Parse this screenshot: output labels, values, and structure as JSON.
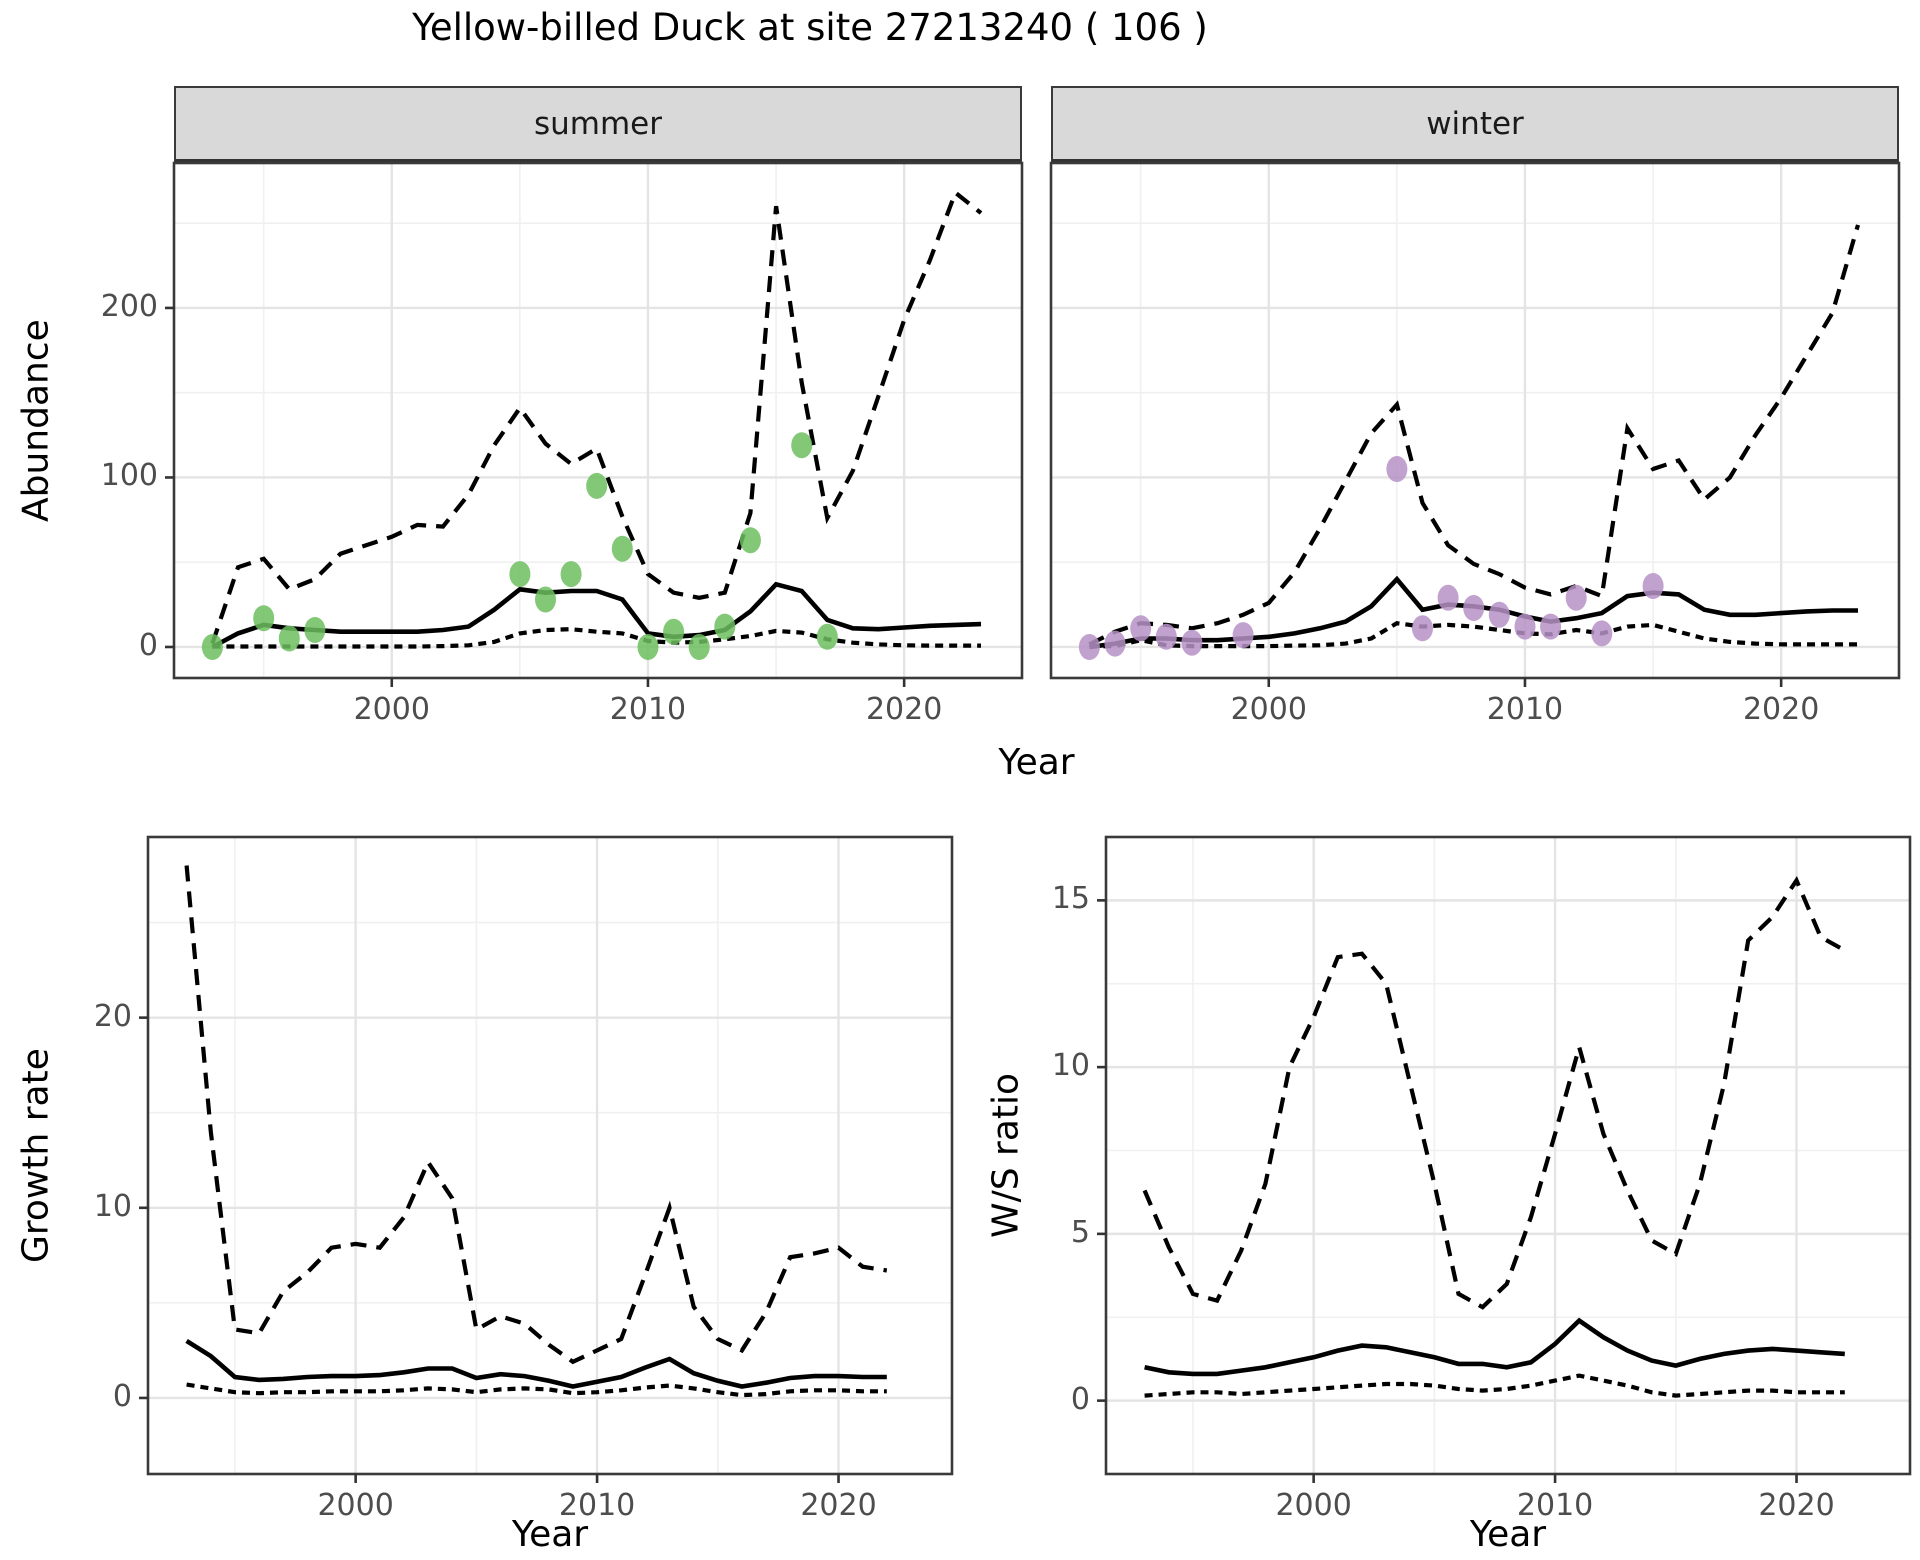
{
  "title": "Yellow-billed Duck at site 27213240 ( 106 )",
  "colors": {
    "summer_points": "#6CBE5E",
    "winter_points": "#B691C4",
    "line": "#000000",
    "grid_major": "#E4E4E4",
    "grid_minor": "#F0F0F0",
    "panel_border": "#3A3A3A",
    "strip_bg": "#D9D9D9",
    "tick_text": "#4D4D4D"
  },
  "chart_data": [
    {
      "id": "abundance-summer",
      "type": "line",
      "facet": "summer",
      "ylabel": "Abundance",
      "xlabel": "Year",
      "xlim": [
        1991.5,
        2024.6
      ],
      "ylim": [
        -18.3,
        285.5
      ],
      "x_major": [
        2000,
        2010,
        2020
      ],
      "x_minor": [
        1995,
        2005,
        2015
      ],
      "x_tick_labels": [
        "2000",
        "2010",
        "2020"
      ],
      "y_major": [
        0,
        100,
        200
      ],
      "y_minor": [
        50,
        150,
        250
      ],
      "y_tick_labels": [
        "0",
        "100",
        "200"
      ],
      "grid": true,
      "legend": "none",
      "series": [
        {
          "name": "upper-95ci",
          "style": "longdash",
          "years": [
            1993,
            1994,
            1995,
            1996,
            1997,
            1998,
            1999,
            2000,
            2001,
            2002,
            2003,
            2004,
            2005,
            2006,
            2007,
            2008,
            2009,
            2010,
            2011,
            2012,
            2013,
            2014,
            2015,
            2016,
            2017,
            2018,
            2019,
            2020,
            2021,
            2022,
            2023
          ],
          "values": [
            2,
            47,
            52,
            34,
            40,
            55,
            60,
            65,
            72,
            71,
            90,
            119,
            141,
            120,
            108,
            117,
            77,
            43,
            32,
            29,
            32,
            79,
            260,
            156,
            76,
            104,
            148,
            193,
            228,
            268,
            256
          ]
        },
        {
          "name": "lower-95ci",
          "style": "shortdash",
          "years": [
            1993,
            1994,
            1995,
            1996,
            1997,
            1998,
            1999,
            2000,
            2001,
            2002,
            2003,
            2004,
            2005,
            2006,
            2007,
            2008,
            2009,
            2010,
            2011,
            2012,
            2013,
            2014,
            2015,
            2016,
            2017,
            2018,
            2019,
            2020,
            2021,
            2022,
            2023
          ],
          "values": [
            0.3,
            0.3,
            0.3,
            0.3,
            0.3,
            0.3,
            0.3,
            0.3,
            0.3,
            0.5,
            1,
            3,
            8,
            10,
            10.5,
            9,
            8,
            3.5,
            2.5,
            3,
            4.5,
            6.5,
            9.5,
            8.5,
            4.5,
            2.5,
            1.5,
            1,
            0.8,
            0.8,
            0.8
          ]
        },
        {
          "name": "median",
          "style": "solid",
          "years": [
            1993,
            1994,
            1995,
            1996,
            1997,
            1998,
            1999,
            2000,
            2001,
            2002,
            2003,
            2004,
            2005,
            2006,
            2007,
            2008,
            2009,
            2010,
            2011,
            2012,
            2013,
            2014,
            2015,
            2016,
            2017,
            2018,
            2019,
            2020,
            2021,
            2022,
            2023
          ],
          "values": [
            0,
            8,
            13,
            11,
            10,
            9,
            9,
            9,
            9,
            10,
            12,
            22,
            34,
            32,
            33,
            33,
            28,
            8,
            6,
            7,
            10,
            21,
            37,
            33,
            16,
            11,
            10.5,
            11.5,
            12.5,
            13,
            13.5
          ]
        }
      ],
      "points": {
        "name": "observed-count",
        "color": "#6CBE5E",
        "years": [
          1993,
          1995,
          1996,
          1997,
          2005,
          2006,
          2007,
          2008,
          2009,
          2010,
          2011,
          2012,
          2013,
          2014,
          2016,
          2017
        ],
        "values": [
          0,
          17,
          5,
          10,
          43,
          28,
          43,
          95,
          58,
          0,
          9,
          0,
          12,
          63,
          119,
          6
        ]
      }
    },
    {
      "id": "abundance-winter",
      "type": "line",
      "facet": "winter",
      "ylabel": "Abundance",
      "xlabel": "Year",
      "xlim": [
        1991.5,
        2024.6
      ],
      "ylim": [
        -18.3,
        285.5
      ],
      "x_major": [
        2000,
        2010,
        2020
      ],
      "x_minor": [
        1995,
        2005,
        2015
      ],
      "x_tick_labels": [
        "2000",
        "2010",
        "2020"
      ],
      "y_major": [
        0,
        100,
        200
      ],
      "y_minor": [
        50,
        150,
        250
      ],
      "y_tick_labels": [],
      "grid": true,
      "legend": "none",
      "series": [
        {
          "name": "upper-95ci",
          "style": "longdash",
          "years": [
            1993,
            1994,
            1995,
            1996,
            1997,
            1998,
            1999,
            2000,
            2001,
            2002,
            2003,
            2004,
            2005,
            2006,
            2007,
            2008,
            2009,
            2010,
            2011,
            2012,
            2013,
            2014,
            2015,
            2016,
            2017,
            2018,
            2019,
            2020,
            2021,
            2022,
            2023
          ],
          "values": [
            1.5,
            9,
            14,
            13,
            11,
            14,
            19,
            26,
            44,
            70,
            98,
            126,
            143,
            85,
            60,
            49,
            43,
            35,
            31,
            36,
            30,
            129,
            105,
            110,
            87,
            100,
            125,
            147,
            172,
            197,
            249
          ]
        },
        {
          "name": "lower-95ci",
          "style": "shortdash",
          "years": [
            1993,
            1994,
            1995,
            1996,
            1997,
            1998,
            1999,
            2000,
            2001,
            2002,
            2003,
            2004,
            2005,
            2006,
            2007,
            2008,
            2009,
            2010,
            2011,
            2012,
            2013,
            2014,
            2015,
            2016,
            2017,
            2018,
            2019,
            2020,
            2021,
            2022,
            2023
          ],
          "values": [
            0.2,
            0.5,
            4,
            1,
            0.5,
            0.5,
            0.5,
            0.5,
            0.8,
            1,
            2,
            5,
            14,
            12,
            13,
            12,
            10,
            8,
            7.5,
            10,
            8,
            12,
            13,
            9,
            5,
            3,
            2,
            1.5,
            1.5,
            1.5,
            1.5
          ]
        },
        {
          "name": "median",
          "style": "solid",
          "years": [
            1993,
            1994,
            1995,
            1996,
            1997,
            1998,
            1999,
            2000,
            2001,
            2002,
            2003,
            2004,
            2005,
            2006,
            2007,
            2008,
            2009,
            2010,
            2011,
            2012,
            2013,
            2014,
            2015,
            2016,
            2017,
            2018,
            2019,
            2020,
            2021,
            2022,
            2023
          ],
          "values": [
            0,
            2,
            5,
            5,
            4,
            4,
            5,
            6,
            8,
            11,
            15,
            24,
            40,
            22,
            25,
            24,
            22,
            18,
            15,
            17,
            20,
            30,
            32,
            31,
            22,
            19,
            19,
            20,
            21,
            21.5,
            21.5
          ]
        }
      ],
      "points": {
        "name": "observed-count",
        "color": "#B691C4",
        "years": [
          1993,
          1994,
          1995,
          1996,
          1997,
          1999,
          2005,
          2006,
          2007,
          2008,
          2009,
          2010,
          2011,
          2012,
          2013,
          2015
        ],
        "values": [
          0,
          2,
          11,
          6,
          2.5,
          7,
          105,
          11,
          29,
          23,
          19,
          12,
          12,
          29,
          8,
          36
        ]
      }
    },
    {
      "id": "growth-rate",
      "type": "line",
      "facet": null,
      "ylabel": "Growth rate",
      "xlabel": "Year",
      "xlim": [
        1991.4,
        2024.7
      ],
      "ylim": [
        -4,
        29.5
      ],
      "x_major": [
        2000,
        2010,
        2020
      ],
      "x_minor": [
        1995,
        2005,
        2015
      ],
      "x_tick_labels": [
        "2000",
        "2010",
        "2020"
      ],
      "y_major": [
        0,
        10,
        20
      ],
      "y_minor": [
        5,
        15,
        25
      ],
      "y_tick_labels": [
        "0",
        "10",
        "20"
      ],
      "grid": true,
      "legend": "none",
      "series": [
        {
          "name": "upper-95ci",
          "style": "longdash",
          "years": [
            1993,
            1994,
            1995,
            1996,
            1997,
            1998,
            1999,
            2000,
            2001,
            2002,
            2003,
            2004,
            2005,
            2006,
            2007,
            2008,
            2009,
            2010,
            2011,
            2012,
            2013,
            2014,
            2015,
            2016,
            2017,
            2018,
            2019,
            2020,
            2021,
            2022
          ],
          "values": [
            28,
            14,
            3.6,
            3.4,
            5.6,
            6.6,
            7.9,
            8.1,
            7.9,
            9.5,
            12.4,
            10.5,
            3.6,
            4.3,
            3.9,
            2.8,
            1.9,
            2.5,
            3.1,
            6.5,
            10,
            4.8,
            3.1,
            2.5,
            4.5,
            7.4,
            7.6,
            7.9,
            6.9,
            6.7
          ]
        },
        {
          "name": "lower-95ci",
          "style": "shortdash",
          "years": [
            1993,
            1994,
            1995,
            1996,
            1997,
            1998,
            1999,
            2000,
            2001,
            2002,
            2003,
            2004,
            2005,
            2006,
            2007,
            2008,
            2009,
            2010,
            2011,
            2012,
            2013,
            2014,
            2015,
            2016,
            2017,
            2018,
            2019,
            2020,
            2021,
            2022
          ],
          "values": [
            0.7,
            0.5,
            0.3,
            0.25,
            0.3,
            0.3,
            0.35,
            0.35,
            0.35,
            0.4,
            0.5,
            0.45,
            0.3,
            0.45,
            0.5,
            0.45,
            0.25,
            0.3,
            0.4,
            0.55,
            0.65,
            0.5,
            0.3,
            0.15,
            0.2,
            0.35,
            0.4,
            0.4,
            0.35,
            0.35
          ]
        },
        {
          "name": "median",
          "style": "solid",
          "years": [
            1993,
            1994,
            1995,
            1996,
            1997,
            1998,
            1999,
            2000,
            2001,
            2002,
            2003,
            2004,
            2005,
            2006,
            2007,
            2008,
            2009,
            2010,
            2011,
            2012,
            2013,
            2014,
            2015,
            2016,
            2017,
            2018,
            2019,
            2020,
            2021,
            2022
          ],
          "values": [
            3,
            2.2,
            1.1,
            0.95,
            1,
            1.1,
            1.15,
            1.15,
            1.2,
            1.35,
            1.55,
            1.55,
            1.05,
            1.25,
            1.15,
            0.9,
            0.6,
            0.85,
            1.1,
            1.6,
            2.05,
            1.3,
            0.9,
            0.6,
            0.8,
            1.05,
            1.15,
            1.15,
            1.1,
            1.1
          ]
        }
      ],
      "points": null
    },
    {
      "id": "ws-ratio",
      "type": "line",
      "facet": null,
      "ylabel": "W/S ratio",
      "xlabel": "Year",
      "xlim": [
        1991.4,
        2024.7
      ],
      "ylim": [
        -2.2,
        16.9
      ],
      "x_major": [
        2000,
        2010,
        2020
      ],
      "x_minor": [
        1995,
        2005,
        2015
      ],
      "x_tick_labels": [
        "2000",
        "2010",
        "2020"
      ],
      "y_major": [
        0,
        5,
        10,
        15
      ],
      "y_minor": [
        2.5,
        7.5,
        12.5
      ],
      "y_tick_labels": [
        "0",
        "5",
        "10",
        "15"
      ],
      "grid": true,
      "legend": "none",
      "series": [
        {
          "name": "upper-95ci",
          "style": "longdash",
          "years": [
            1993,
            1994,
            1995,
            1996,
            1997,
            1998,
            1999,
            2000,
            2001,
            2002,
            2003,
            2004,
            2005,
            2006,
            2007,
            2008,
            2009,
            2010,
            2011,
            2012,
            2013,
            2014,
            2015,
            2016,
            2017,
            2018,
            2019,
            2020,
            2021,
            2022
          ],
          "values": [
            6.3,
            4.6,
            3.2,
            3,
            4.5,
            6.5,
            10,
            11.5,
            13.3,
            13.4,
            12.5,
            9.5,
            6.5,
            3.2,
            2.8,
            3.5,
            5.5,
            8,
            10.6,
            8,
            6.3,
            4.8,
            4.4,
            6.5,
            9.5,
            13.8,
            14.5,
            15.6,
            13.9,
            13.5
          ]
        },
        {
          "name": "lower-95ci",
          "style": "shortdash",
          "years": [
            1993,
            1994,
            1995,
            1996,
            1997,
            1998,
            1999,
            2000,
            2001,
            2002,
            2003,
            2004,
            2005,
            2006,
            2007,
            2008,
            2009,
            2010,
            2011,
            2012,
            2013,
            2014,
            2015,
            2016,
            2017,
            2018,
            2019,
            2020,
            2021,
            2022
          ],
          "values": [
            0.15,
            0.2,
            0.25,
            0.25,
            0.2,
            0.25,
            0.3,
            0.35,
            0.4,
            0.45,
            0.5,
            0.5,
            0.45,
            0.35,
            0.3,
            0.35,
            0.45,
            0.6,
            0.75,
            0.6,
            0.45,
            0.25,
            0.15,
            0.2,
            0.25,
            0.3,
            0.3,
            0.25,
            0.25,
            0.25
          ]
        },
        {
          "name": "median",
          "style": "solid",
          "years": [
            1993,
            1994,
            1995,
            1996,
            1997,
            1998,
            1999,
            2000,
            2001,
            2002,
            2003,
            2004,
            2005,
            2006,
            2007,
            2008,
            2009,
            2010,
            2011,
            2012,
            2013,
            2014,
            2015,
            2016,
            2017,
            2018,
            2019,
            2020,
            2021,
            2022
          ],
          "values": [
            1,
            0.85,
            0.8,
            0.8,
            0.9,
            1,
            1.15,
            1.3,
            1.5,
            1.65,
            1.6,
            1.45,
            1.3,
            1.1,
            1.1,
            1,
            1.15,
            1.7,
            2.4,
            1.9,
            1.5,
            1.2,
            1.05,
            1.25,
            1.4,
            1.5,
            1.55,
            1.5,
            1.45,
            1.4
          ]
        }
      ],
      "points": null
    }
  ]
}
